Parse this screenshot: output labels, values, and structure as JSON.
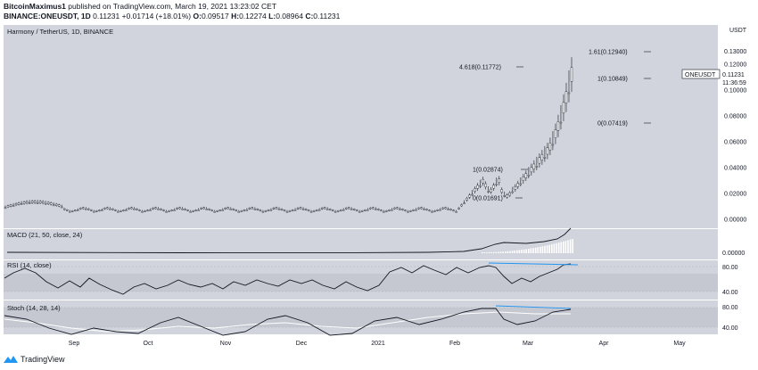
{
  "header": {
    "author": "BitcoinMaximus1",
    "published_text": "published on TradingView.com, March 19, 2021 13:23:02 CET",
    "symbol_line": "BINANCE:ONEUSDT, 1D",
    "last": "0.11231",
    "change": "+0.01714 (+18.01%)",
    "o_label": "O:",
    "o_value": "0.09517",
    "h_label": "H:",
    "h_value": "0.12274",
    "l_label": "L:",
    "l_value": "0.08964",
    "c_label": "C:",
    "c_value": "0.11231"
  },
  "main_pane": {
    "title": "Harmony / TetherUS, 1D, BINANCE",
    "currency": "USDT",
    "price_ticks": [
      "0.13000",
      "0.12000",
      "0.10000",
      "0.08000",
      "0.06000",
      "0.04000",
      "0.02000",
      "0.00000"
    ],
    "price_tick_values": [
      0.13,
      0.12,
      0.1,
      0.08,
      0.06,
      0.04,
      0.02,
      0.0
    ],
    "last_price_tag": {
      "symbol": "ONEUSDT",
      "price": "0.11231",
      "countdown": "11:36:59",
      "value": 0.11231
    },
    "fib_levels": [
      {
        "label": "1.61(0.12940)",
        "value": 0.1294
      },
      {
        "label": "4.618(0.11772)",
        "value": 0.11772
      },
      {
        "label": "1(0.10849)",
        "value": 0.10849
      },
      {
        "label": "0(0.07419)",
        "value": 0.07419
      },
      {
        "label": "1(0.02874)",
        "value": 0.02874
      },
      {
        "label": "0(0.01691)",
        "value": 0.01691
      }
    ]
  },
  "macd_pane": {
    "title": "MACD (21, 50, close, 24)",
    "tick": "0.00000"
  },
  "rsi_pane": {
    "title": "RSI (14, close)",
    "ticks": [
      "80.00",
      "40.00"
    ]
  },
  "stoch_pane": {
    "title": "Stoch (14, 28, 14)",
    "ticks": [
      "80.00",
      "40.00"
    ]
  },
  "x_axis": {
    "labels": [
      "Sep",
      "Oct",
      "Nov",
      "Dec",
      "2021",
      "Feb",
      "Mar",
      "Apr",
      "May"
    ]
  },
  "footer": {
    "brand": "TradingView"
  },
  "colors": {
    "background": "#ffffff",
    "pane": "#d1d4dc",
    "candle": "#131722",
    "trendline": "#2196f3"
  }
}
